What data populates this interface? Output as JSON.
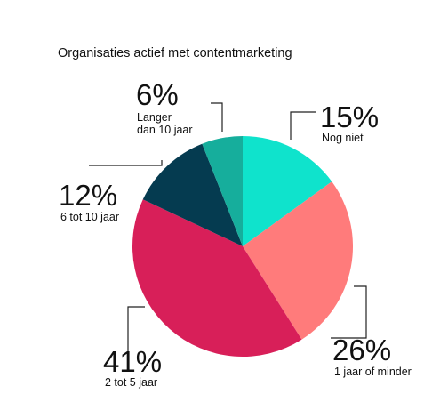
{
  "chart_data": {
    "type": "pie",
    "title": "Organisaties actief met contentmarketing",
    "slices": [
      {
        "label": "Nog niet",
        "value": 15,
        "display": "15%",
        "color": "#0fe3cc"
      },
      {
        "label": "1 jaar of minder",
        "value": 26,
        "display": "26%",
        "color": "#ff7b7b"
      },
      {
        "label": "2 tot 5 jaar",
        "value": 41,
        "display": "41%",
        "color": "#d81f59"
      },
      {
        "label": "6 tot 10 jaar",
        "value": 12,
        "display": "12%",
        "color": "#053b50"
      },
      {
        "label": "Langer dan 10 jaar",
        "value": 6,
        "display": "6%",
        "color": "#16ae9c"
      }
    ]
  }
}
